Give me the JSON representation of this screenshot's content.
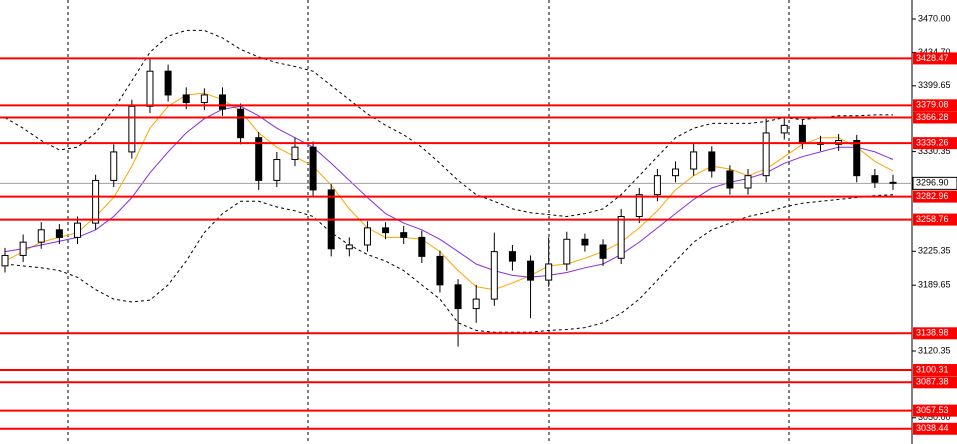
{
  "chart_data": {
    "type": "candlestick",
    "ylim": [
      3022.4,
      3490.0
    ],
    "yticks": [
      {
        "value": 3470,
        "label": "3470.00"
      },
      {
        "value": 3434.7,
        "label": "3434.70"
      },
      {
        "value": 3399.65,
        "label": "3399.65"
      },
      {
        "value": 3330.35,
        "label": "3330.35"
      },
      {
        "value": 3225.35,
        "label": "3225.35"
      },
      {
        "value": 3189.65,
        "label": "3189.65"
      },
      {
        "value": 3120.35,
        "label": "3120.35"
      },
      {
        "value": 3050,
        "label": "3050.00"
      }
    ],
    "grid": true,
    "up_color": "#ffffff",
    "down_color": "#000000",
    "open": [
      3210,
      3221,
      3235,
      3248,
      3240,
      3255,
      3300,
      3330,
      3378,
      3415,
      3390,
      3382,
      3390,
      3375,
      3345,
      3300,
      3322,
      3335,
      3290,
      3228,
      3232,
      3250,
      3245,
      3240,
      3220,
      3190,
      3165,
      3175,
      3225,
      3215,
      3195,
      3212,
      3238,
      3232,
      3218,
      3262,
      3285,
      3305,
      3312,
      3330,
      3310,
      3292,
      3305,
      3350,
      3358,
      3340,
      3338,
      3342,
      3305,
      3298
    ],
    "high": [
      3229,
      3243,
      3256,
      3254,
      3262,
      3306,
      3338,
      3385,
      3428,
      3422,
      3398,
      3397,
      3398,
      3381,
      3351,
      3330,
      3345,
      3341,
      3296,
      3240,
      3257,
      3256,
      3252,
      3247,
      3226,
      3196,
      3190,
      3245,
      3232,
      3221,
      3240,
      3246,
      3244,
      3238,
      3270,
      3292,
      3312,
      3320,
      3340,
      3336,
      3316,
      3312,
      3365,
      3366,
      3364,
      3347,
      3349,
      3348,
      3312,
      3306
    ],
    "low": [
      3203,
      3214,
      3228,
      3233,
      3233,
      3248,
      3293,
      3323,
      3371,
      3383,
      3375,
      3374,
      3368,
      3338,
      3290,
      3293,
      3315,
      3283,
      3220,
      3220,
      3225,
      3238,
      3233,
      3213,
      3182,
      3125,
      3150,
      3168,
      3205,
      3155,
      3188,
      3205,
      3225,
      3210,
      3212,
      3255,
      3278,
      3298,
      3305,
      3303,
      3285,
      3285,
      3298,
      3343,
      3333,
      3331,
      3331,
      3298,
      3292,
      3290
    ],
    "close": [
      3221,
      3235,
      3248,
      3240,
      3255,
      3300,
      3330,
      3378,
      3415,
      3390,
      3382,
      3390,
      3375,
      3345,
      3300,
      3322,
      3335,
      3290,
      3228,
      3232,
      3250,
      3245,
      3240,
      3220,
      3190,
      3165,
      3175,
      3225,
      3215,
      3195,
      3212,
      3238,
      3232,
      3218,
      3262,
      3285,
      3305,
      3312,
      3330,
      3310,
      3292,
      3305,
      3350,
      3358,
      3340,
      3338,
      3342,
      3305,
      3298,
      3297
    ],
    "lines": [
      {
        "color": "#ffa500",
        "dash": false,
        "values": [
          3215,
          3225,
          3235,
          3240,
          3245,
          3262,
          3282,
          3315,
          3355,
          3378,
          3390,
          3392,
          3385,
          3373,
          3350,
          3335,
          3325,
          3315,
          3295,
          3270,
          3250,
          3240,
          3240,
          3238,
          3225,
          3205,
          3188,
          3185,
          3192,
          3200,
          3210,
          3212,
          3218,
          3225,
          3235,
          3250,
          3268,
          3290,
          3305,
          3315,
          3312,
          3305,
          3312,
          3325,
          3338,
          3345,
          3345,
          3335,
          3320,
          3310
        ]
      },
      {
        "color": "#8a2be2",
        "dash": false,
        "values": [
          3225,
          3228,
          3232,
          3236,
          3240,
          3248,
          3262,
          3282,
          3308,
          3330,
          3350,
          3365,
          3375,
          3378,
          3368,
          3355,
          3345,
          3335,
          3318,
          3300,
          3282,
          3265,
          3255,
          3248,
          3238,
          3225,
          3212,
          3205,
          3200,
          3198,
          3200,
          3203,
          3208,
          3212,
          3222,
          3235,
          3250,
          3265,
          3280,
          3292,
          3298,
          3302,
          3308,
          3318,
          3325,
          3330,
          3335,
          3335,
          3330,
          3322
        ]
      },
      {
        "color": "#000000",
        "dash": true,
        "values": [
          3366,
          3355,
          3342,
          3332,
          3335,
          3350,
          3375,
          3405,
          3435,
          3452,
          3458,
          3458,
          3450,
          3438,
          3430,
          3424,
          3420,
          3415,
          3400,
          3385,
          3370,
          3358,
          3348,
          3335,
          3318,
          3300,
          3285,
          3278,
          3270,
          3266,
          3264,
          3262,
          3265,
          3270,
          3285,
          3305,
          3325,
          3345,
          3355,
          3360,
          3360,
          3360,
          3362,
          3366,
          3364,
          3366,
          3368,
          3368,
          3369,
          3369
        ]
      },
      {
        "color": "#000000",
        "dash": true,
        "values": [
          3212,
          3210,
          3208,
          3205,
          3198,
          3185,
          3175,
          3172,
          3174,
          3190,
          3215,
          3245,
          3265,
          3278,
          3278,
          3272,
          3268,
          3262,
          3245,
          3232,
          3222,
          3215,
          3205,
          3190,
          3175,
          3150,
          3142,
          3140,
          3140,
          3140,
          3142,
          3143,
          3145,
          3150,
          3160,
          3175,
          3195,
          3215,
          3235,
          3248,
          3255,
          3262,
          3266,
          3272,
          3276,
          3278,
          3280,
          3282,
          3284,
          3285
        ]
      }
    ],
    "levels": [
      3428.47,
      3379.08,
      3366.28,
      3339.26,
      3282.96,
      3258.76,
      3138.98,
      3100.31,
      3087.38,
      3057.53,
      3038.44
    ],
    "level_color": "#ff0000",
    "current": {
      "value": 3296.9,
      "label": "3296.90"
    }
  }
}
